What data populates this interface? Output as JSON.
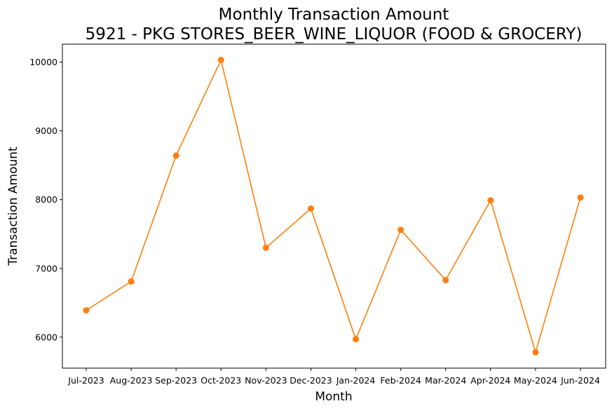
{
  "chart_data": {
    "type": "line",
    "title": "Monthly Transaction Amount",
    "subtitle": "5921 - PKG STORES_BEER_WINE_LIQUOR (FOOD & GROCERY)",
    "xlabel": "Month",
    "ylabel": "Transaction Amount",
    "categories": [
      "Jul-2023",
      "Aug-2023",
      "Sep-2023",
      "Oct-2023",
      "Nov-2023",
      "Dec-2023",
      "Jan-2024",
      "Feb-2024",
      "Mar-2024",
      "Apr-2024",
      "May-2024",
      "Jun-2024"
    ],
    "series": [
      {
        "color": "#ff7f0e",
        "marker": "circle",
        "values": [
          6390,
          6810,
          8640,
          10030,
          7300,
          7870,
          5970,
          7560,
          6830,
          7990,
          5780,
          8030
        ]
      }
    ],
    "ylim": [
      5550,
      10260
    ],
    "yticks": [
      6000,
      7000,
      8000,
      9000,
      10000
    ],
    "grid": false,
    "legend": "none"
  }
}
